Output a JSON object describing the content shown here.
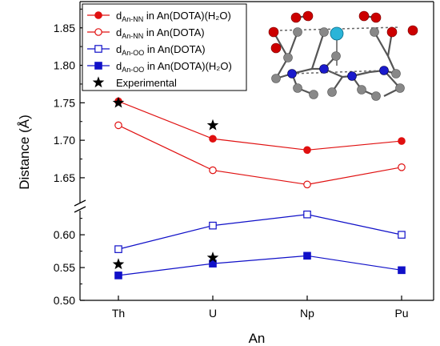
{
  "chart_data": {
    "type": "line",
    "xlabel": "An",
    "ylabel": "Distance (Å)",
    "categories": [
      "Th",
      "U",
      "Np",
      "Pu"
    ],
    "axis_break": true,
    "upper_panel": {
      "ylim": [
        1.62,
        1.885
      ],
      "yticks": [
        "1.65",
        "1.70",
        "1.75",
        "1.80",
        "1.85"
      ]
    },
    "lower_panel": {
      "ylim": [
        0.5,
        0.638
      ],
      "yticks": [
        "0.50",
        "0.55",
        "0.60"
      ]
    },
    "series": [
      {
        "name_main": "d",
        "name_sub": "An-NN",
        "name_rest": " in An(DOTA)(H₂O)",
        "panel": "upper",
        "marker": "circle",
        "filled": true,
        "color": "#e01010",
        "values": [
          1.752,
          1.702,
          1.687,
          1.699
        ]
      },
      {
        "name_main": "d",
        "name_sub": "An-NN",
        "name_rest": " in An(DOTA)",
        "panel": "upper",
        "marker": "circle",
        "filled": false,
        "color": "#e01010",
        "values": [
          1.72,
          1.66,
          1.641,
          1.664
        ]
      },
      {
        "name_main": "d",
        "name_sub": "An-OO",
        "name_rest": " in An(DOTA)",
        "panel": "lower",
        "marker": "square",
        "filled": false,
        "color": "#1010c8",
        "values": [
          0.578,
          0.614,
          0.631,
          0.6
        ]
      },
      {
        "name_main": "d",
        "name_sub": "An-OO",
        "name_rest": " in An(DOTA)(H₂O)",
        "panel": "lower",
        "marker": "square",
        "filled": true,
        "color": "#1010c8",
        "values": [
          0.538,
          0.556,
          0.568,
          0.546
        ]
      }
    ],
    "experimental": {
      "name": "Experimental",
      "marker": "star",
      "color": "#000000",
      "points": [
        {
          "category": "Th",
          "value": 1.75,
          "panel": "upper"
        },
        {
          "category": "U",
          "value": 1.72,
          "panel": "upper"
        },
        {
          "category": "Th",
          "value": 0.555,
          "panel": "lower"
        },
        {
          "category": "U",
          "value": 0.565,
          "panel": "lower"
        }
      ]
    },
    "legend_position": "top-left",
    "inset": "ball-and-stick-molecule-structure",
    "inset_colors": {
      "oxygen": "#cc0000",
      "nitrogen": "#1a1acc",
      "carbon": "#888888",
      "metal": "#2ab4d8"
    }
  }
}
